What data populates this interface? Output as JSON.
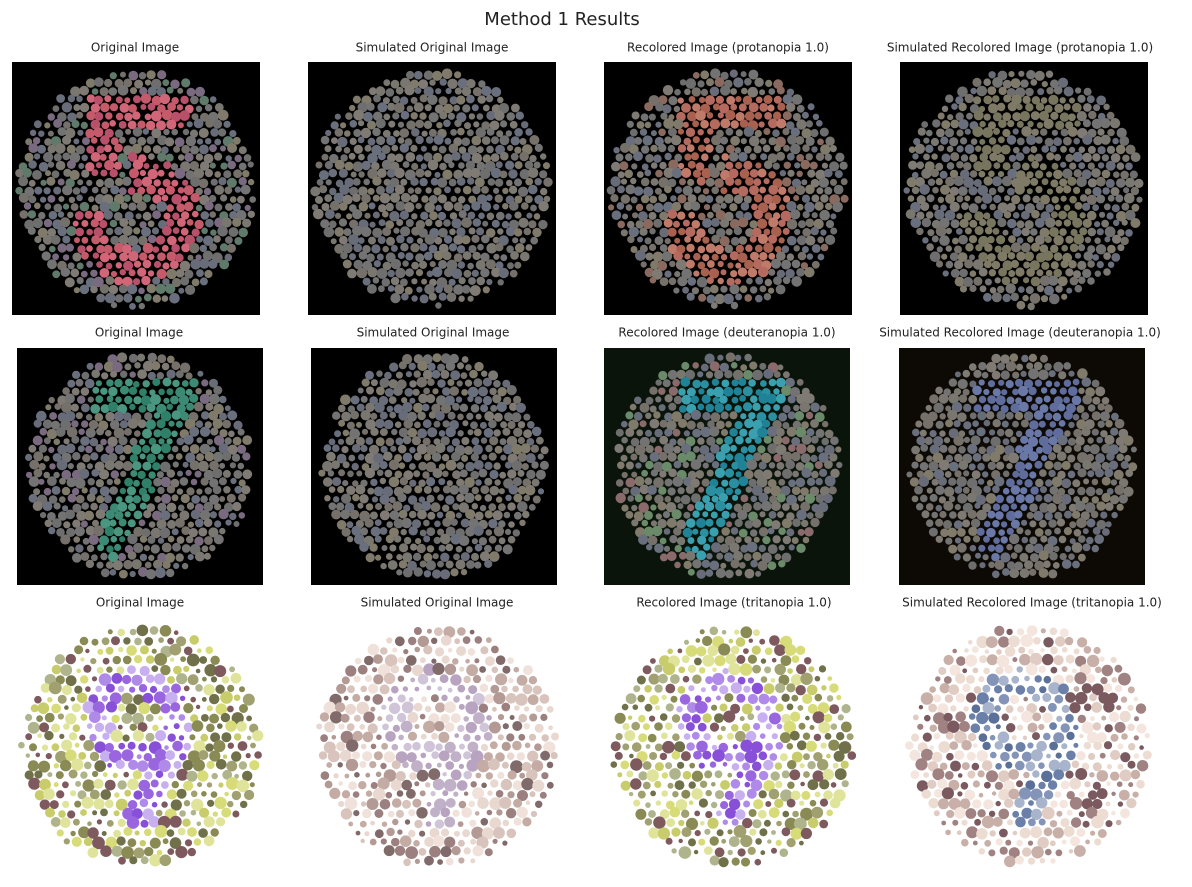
{
  "title": "Method 1 Results",
  "rows": [
    [
      "Original Image",
      "Simulated Original Image",
      "Recolored Image (protanopia 1.0)",
      "Simulated Recolored Image (protanopia 1.0)"
    ],
    [
      "Original Image",
      "Simulated Original Image",
      "Recolored Image (deuteranopia 1.0)",
      "Simulated Recolored Image (deuteranopia 1.0)"
    ],
    [
      "Original Image",
      "Simulated Original Image",
      "Recolored Image (tritanopia 1.0)",
      "Simulated Recolored Image (tritanopia 1.0)"
    ]
  ]
}
